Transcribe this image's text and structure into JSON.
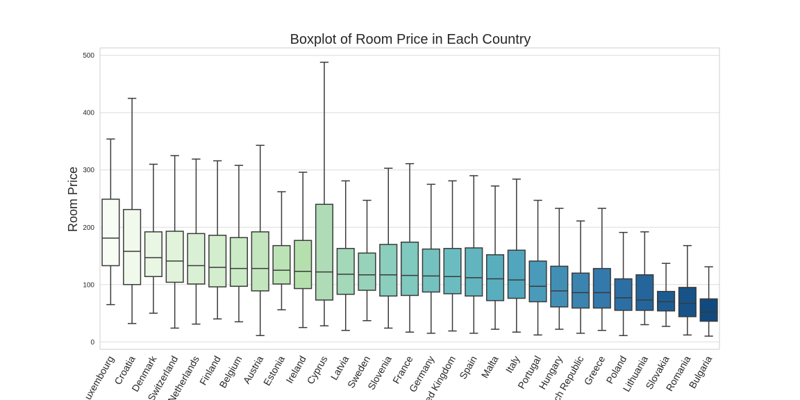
{
  "chart_data": {
    "type": "box",
    "title": "Boxplot of Room Price in Each Country",
    "xlabel": "",
    "ylabel": "Room Price",
    "ylim": [
      -13,
      513
    ],
    "yticks": [
      0,
      100,
      200,
      300,
      400,
      500
    ],
    "grid": true,
    "fliers": false,
    "categories": [
      "Luxembourg",
      "Croatia",
      "Denmark",
      "Switzerland",
      "Netherlands",
      "Finland",
      "Belgium",
      "Austria",
      "Estonia",
      "Ireland",
      "Cyprus",
      "Latvia",
      "Sweden",
      "Slovenia",
      "France",
      "Germany",
      "United Kingdom",
      "Spain",
      "Malta",
      "Italy",
      "Portugal",
      "Hungary",
      "Czech Republic",
      "Greece",
      "Poland",
      "Lithuania",
      "Slovakia",
      "Romania",
      "Bulgaria"
    ],
    "boxes": [
      {
        "whislo": 65,
        "q1": 133,
        "med": 181,
        "q3": 249,
        "whishi": 354,
        "color": "#f7fcf5"
      },
      {
        "whislo": 32,
        "q1": 100,
        "med": 158,
        "q3": 231,
        "whishi": 425,
        "color": "#f0f9ec"
      },
      {
        "whislo": 50,
        "q1": 114,
        "med": 147,
        "q3": 192,
        "whishi": 310,
        "color": "#e9f6e3"
      },
      {
        "whislo": 24,
        "q1": 104,
        "med": 141,
        "q3": 193,
        "whishi": 325,
        "color": "#e1f3da"
      },
      {
        "whislo": 31,
        "q1": 101,
        "med": 133,
        "q3": 189,
        "whishi": 319,
        "color": "#daf0d4"
      },
      {
        "whislo": 40,
        "q1": 96,
        "med": 130,
        "q3": 186,
        "whishi": 316,
        "color": "#d3eecd"
      },
      {
        "whislo": 35,
        "q1": 97,
        "med": 128,
        "q3": 182,
        "whishi": 308,
        "color": "#cbeac6"
      },
      {
        "whislo": 11,
        "q1": 89,
        "med": 128,
        "q3": 192,
        "whishi": 343,
        "color": "#c3e6be"
      },
      {
        "whislo": 56,
        "q1": 101,
        "med": 125,
        "q3": 168,
        "whishi": 262,
        "color": "#bce3b6"
      },
      {
        "whislo": 25,
        "q1": 93,
        "med": 123,
        "q3": 177,
        "whishi": 296,
        "color": "#b5e0ae"
      },
      {
        "whislo": 28,
        "q1": 73,
        "med": 122,
        "q3": 240,
        "whishi": 488,
        "color": "#afdbb7"
      },
      {
        "whislo": 20,
        "q1": 83,
        "med": 118,
        "q3": 163,
        "whishi": 281,
        "color": "#a3d8b9"
      },
      {
        "whislo": 37,
        "q1": 90,
        "med": 117,
        "q3": 155,
        "whishi": 247,
        "color": "#97d3bb"
      },
      {
        "whislo": 24,
        "q1": 80,
        "med": 117,
        "q3": 170,
        "whishi": 303,
        "color": "#8bcebd"
      },
      {
        "whislo": 17,
        "q1": 81,
        "med": 116,
        "q3": 174,
        "whishi": 311,
        "color": "#7fc9bf"
      },
      {
        "whislo": 15,
        "q1": 87,
        "med": 115,
        "q3": 162,
        "whishi": 275,
        "color": "#74c2c0"
      },
      {
        "whislo": 19,
        "q1": 84,
        "med": 114,
        "q3": 163,
        "whishi": 281,
        "color": "#6bbcc0"
      },
      {
        "whislo": 15,
        "q1": 80,
        "med": 112,
        "q3": 164,
        "whishi": 290,
        "color": "#62b5bf"
      },
      {
        "whislo": 22,
        "q1": 72,
        "med": 110,
        "q3": 152,
        "whishi": 272,
        "color": "#59aebe"
      },
      {
        "whislo": 17,
        "q1": 76,
        "med": 108,
        "q3": 160,
        "whishi": 284,
        "color": "#51a6bd"
      },
      {
        "whislo": 12,
        "q1": 70,
        "med": 97,
        "q3": 141,
        "whishi": 247,
        "color": "#4a9ab9"
      },
      {
        "whislo": 22,
        "q1": 61,
        "med": 89,
        "q3": 132,
        "whishi": 233,
        "color": "#428fb5"
      },
      {
        "whislo": 15,
        "q1": 59,
        "med": 86,
        "q3": 120,
        "whishi": 211,
        "color": "#3b84b0"
      },
      {
        "whislo": 20,
        "q1": 59,
        "med": 86,
        "q3": 128,
        "whishi": 233,
        "color": "#3379ab"
      },
      {
        "whislo": 11,
        "q1": 55,
        "med": 77,
        "q3": 110,
        "whishi": 191,
        "color": "#2c6fa5"
      },
      {
        "whislo": 30,
        "q1": 55,
        "med": 73,
        "q3": 117,
        "whishi": 192,
        "color": "#24669c"
      },
      {
        "whislo": 27,
        "q1": 54,
        "med": 70,
        "q3": 88,
        "whishi": 137,
        "color": "#1d5c93"
      },
      {
        "whislo": 12,
        "q1": 44,
        "med": 67,
        "q3": 95,
        "whishi": 168,
        "color": "#175389"
      },
      {
        "whislo": 10,
        "q1": 36,
        "med": 52,
        "q3": 75,
        "whishi": 131,
        "color": "#104a7f"
      }
    ]
  }
}
